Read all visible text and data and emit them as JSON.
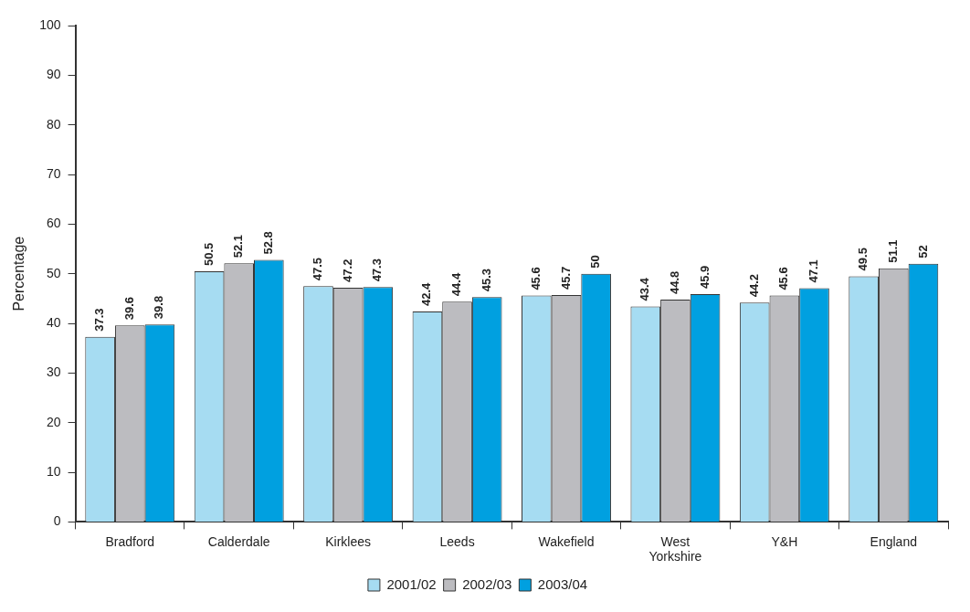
{
  "chart_data": {
    "type": "bar",
    "ylabel": "Percentage",
    "categories": [
      "Bradford",
      "Calderdale",
      "Kirklees",
      "Leeds",
      "Wakefield",
      "West Yorkshire",
      "Y&H",
      "England"
    ],
    "series": [
      {
        "name": "2001/02",
        "color": "#a6dcf2",
        "values": [
          37.3,
          50.5,
          47.5,
          42.4,
          45.6,
          43.4,
          44.2,
          49.5
        ]
      },
      {
        "name": "2002/03",
        "color": "#bcbcc0",
        "values": [
          39.6,
          52.1,
          47.2,
          44.4,
          45.7,
          44.8,
          45.6,
          51.1
        ]
      },
      {
        "name": "2003/04",
        "color": "#00a0e0",
        "values": [
          39.8,
          52.8,
          47.3,
          45.3,
          50,
          45.9,
          47.1,
          52
        ]
      }
    ],
    "ylim": [
      0,
      100
    ],
    "yticks": [
      0,
      10,
      20,
      30,
      40,
      50,
      60,
      70,
      80,
      90,
      100
    ],
    "grid": false,
    "legend": "bottom",
    "data_labels": true
  }
}
